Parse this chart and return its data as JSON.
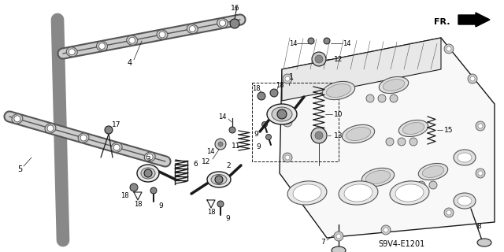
{
  "bg_color": "#ffffff",
  "diagram_code": "S9V4-E1201",
  "line_color": "#1a1a1a",
  "gray_light": "#cccccc",
  "gray_mid": "#888888",
  "gray_dark": "#555555",
  "fig_w": 6.4,
  "fig_h": 3.2,
  "dpi": 100
}
